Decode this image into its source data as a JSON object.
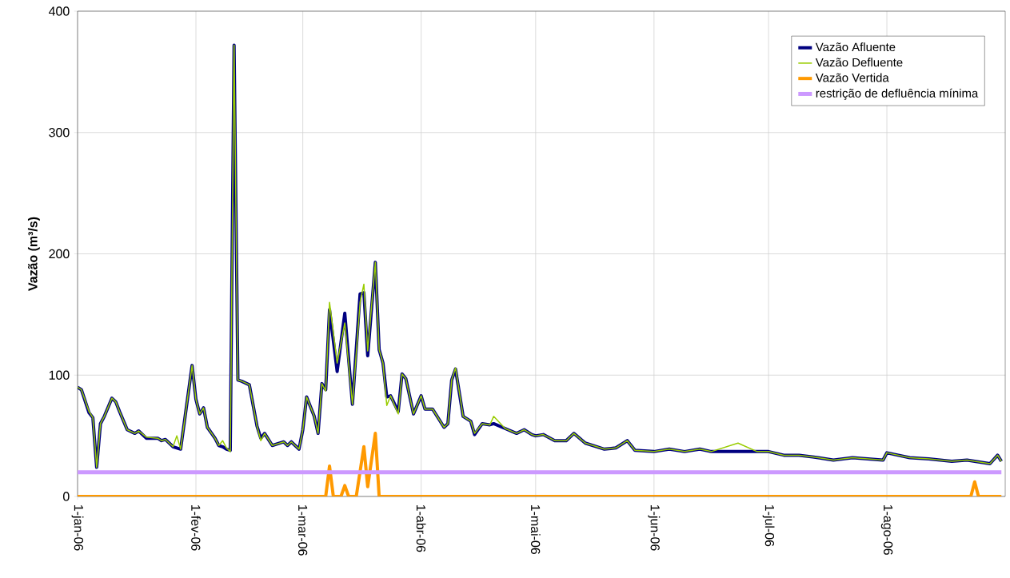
{
  "chart_data": {
    "type": "line",
    "ylabel": "Vazão (m³/s)",
    "x": [
      "2006-01-01",
      "2006-01-02",
      "2006-01-04",
      "2006-01-05",
      "2006-01-06",
      "2006-01-07",
      "2006-01-08",
      "2006-01-10",
      "2006-01-11",
      "2006-01-12",
      "2006-01-14",
      "2006-01-16",
      "2006-01-17",
      "2006-01-19",
      "2006-01-22",
      "2006-01-23",
      "2006-01-24",
      "2006-01-26",
      "2006-01-27",
      "2006-01-28",
      "2006-01-29",
      "2006-01-31",
      "2006-02-01",
      "2006-02-02",
      "2006-02-03",
      "2006-02-04",
      "2006-02-06",
      "2006-02-07",
      "2006-02-08",
      "2006-02-09",
      "2006-02-10",
      "2006-02-11",
      "2006-02-12",
      "2006-02-13",
      "2006-02-15",
      "2006-02-17",
      "2006-02-18",
      "2006-02-19",
      "2006-02-21",
      "2006-02-24",
      "2006-02-25",
      "2006-02-26",
      "2006-02-28",
      "2006-03-01",
      "2006-03-02",
      "2006-03-04",
      "2006-03-05",
      "2006-03-06",
      "2006-03-07",
      "2006-03-08",
      "2006-03-10",
      "2006-03-12",
      "2006-03-14",
      "2006-03-16",
      "2006-03-17",
      "2006-03-18",
      "2006-03-20",
      "2006-03-21",
      "2006-03-22",
      "2006-03-23",
      "2006-03-24",
      "2006-03-26",
      "2006-03-27",
      "2006-03-28",
      "2006-03-30",
      "2006-04-01",
      "2006-04-02",
      "2006-04-04",
      "2006-04-07",
      "2006-04-08",
      "2006-04-09",
      "2006-04-10",
      "2006-04-12",
      "2006-04-14",
      "2006-04-15",
      "2006-04-17",
      "2006-04-19",
      "2006-04-20",
      "2006-04-23",
      "2006-04-26",
      "2006-04-28",
      "2006-04-30",
      "2006-05-01",
      "2006-05-03",
      "2006-05-06",
      "2006-05-09",
      "2006-05-11",
      "2006-05-14",
      "2006-05-19",
      "2006-05-22",
      "2006-05-25",
      "2006-05-27",
      "2006-06-01",
      "2006-06-05",
      "2006-06-09",
      "2006-06-13",
      "2006-06-16",
      "2006-06-23",
      "2006-06-28",
      "2006-07-01",
      "2006-07-05",
      "2006-07-09",
      "2006-07-14",
      "2006-07-18",
      "2006-07-23",
      "2006-07-31",
      "2006-08-01",
      "2006-08-07",
      "2006-08-12",
      "2006-08-18",
      "2006-08-22",
      "2006-08-28",
      "2006-08-30",
      "2006-08-31"
    ],
    "series": [
      {
        "name": "Vazão Afluente",
        "color": "#000080",
        "values": [
          90,
          88,
          69,
          65,
          24,
          60,
          66,
          81,
          78,
          70,
          55,
          52,
          54,
          48,
          48,
          46,
          47,
          41,
          40,
          39,
          62,
          108,
          80,
          68,
          73,
          57,
          48,
          42,
          41,
          39,
          38,
          372,
          96,
          95,
          92,
          58,
          48,
          52,
          42,
          45,
          42,
          45,
          39,
          55,
          82,
          66,
          52,
          93,
          88,
          154,
          103,
          151,
          76,
          167,
          168,
          116,
          193,
          121,
          110,
          82,
          83,
          70,
          101,
          97,
          68,
          83,
          72,
          72,
          57,
          60,
          96,
          105,
          66,
          62,
          51,
          60,
          59,
          60,
          56,
          52,
          55,
          51,
          50,
          51,
          46,
          46,
          52,
          44,
          39,
          40,
          46,
          38,
          37,
          39,
          37,
          39,
          37,
          37,
          37,
          37,
          34,
          34,
          32,
          30,
          32,
          30,
          36,
          32,
          31,
          29,
          30,
          27,
          34,
          29
        ]
      },
      {
        "name": "Vazão Defluente",
        "color": "#99cc00",
        "values": [
          90,
          88,
          70,
          65,
          24,
          60,
          66,
          81,
          78,
          70,
          55,
          52,
          54,
          49,
          48,
          46,
          47,
          41,
          50,
          39,
          62,
          108,
          80,
          68,
          73,
          57,
          48,
          42,
          46,
          40,
          37,
          372,
          96,
          95,
          92,
          58,
          46,
          52,
          42,
          45,
          42,
          45,
          39,
          55,
          82,
          66,
          52,
          93,
          87,
          160,
          110,
          143,
          76,
          160,
          175,
          120,
          193,
          121,
          110,
          75,
          83,
          68,
          101,
          97,
          68,
          83,
          72,
          72,
          57,
          60,
          96,
          106,
          66,
          62,
          52,
          60,
          59,
          66,
          56,
          52,
          55,
          51,
          50,
          51,
          46,
          46,
          52,
          44,
          39,
          40,
          46,
          38,
          37,
          39,
          37,
          39,
          37,
          44,
          37,
          37,
          34,
          34,
          32,
          30,
          32,
          30,
          36,
          32,
          31,
          29,
          30,
          27,
          34,
          29
        ]
      },
      {
        "name": "Vazão Vertida",
        "color": "#ff9900",
        "x": [
          "2006-01-01",
          "2006-03-07",
          "2006-03-08",
          "2006-03-09",
          "2006-03-11",
          "2006-03-12",
          "2006-03-13",
          "2006-03-15",
          "2006-03-17",
          "2006-03-18",
          "2006-03-20",
          "2006-03-21",
          "2006-08-23",
          "2006-08-24",
          "2006-08-25",
          "2006-08-31"
        ],
        "values": [
          0,
          0,
          25,
          0,
          0,
          9,
          0,
          0,
          41,
          8,
          52,
          0,
          0,
          12,
          0,
          0
        ]
      },
      {
        "name": "restrição de defluência mínima",
        "color": "#cc99ff",
        "x": [
          "2006-01-01",
          "2006-08-31"
        ],
        "values": [
          20,
          20
        ]
      }
    ],
    "xlim": [
      "2006-01-01",
      "2006-09-01"
    ],
    "xticks": [
      {
        "value": "2006-01-01",
        "label": "1-jan-06"
      },
      {
        "value": "2006-02-01",
        "label": "1-fev-06"
      },
      {
        "value": "2006-03-01",
        "label": "1-mar-06"
      },
      {
        "value": "2006-04-01",
        "label": "1-abr-06"
      },
      {
        "value": "2006-05-01",
        "label": "1-mai-06"
      },
      {
        "value": "2006-06-01",
        "label": "1-jun-06"
      },
      {
        "value": "2006-07-01",
        "label": "1-jul-06"
      },
      {
        "value": "2006-08-01",
        "label": "1-ago-06"
      }
    ],
    "ylim": [
      0,
      400
    ],
    "yticks": [
      0,
      100,
      200,
      300,
      400
    ],
    "grid": true,
    "legend": "top right"
  }
}
